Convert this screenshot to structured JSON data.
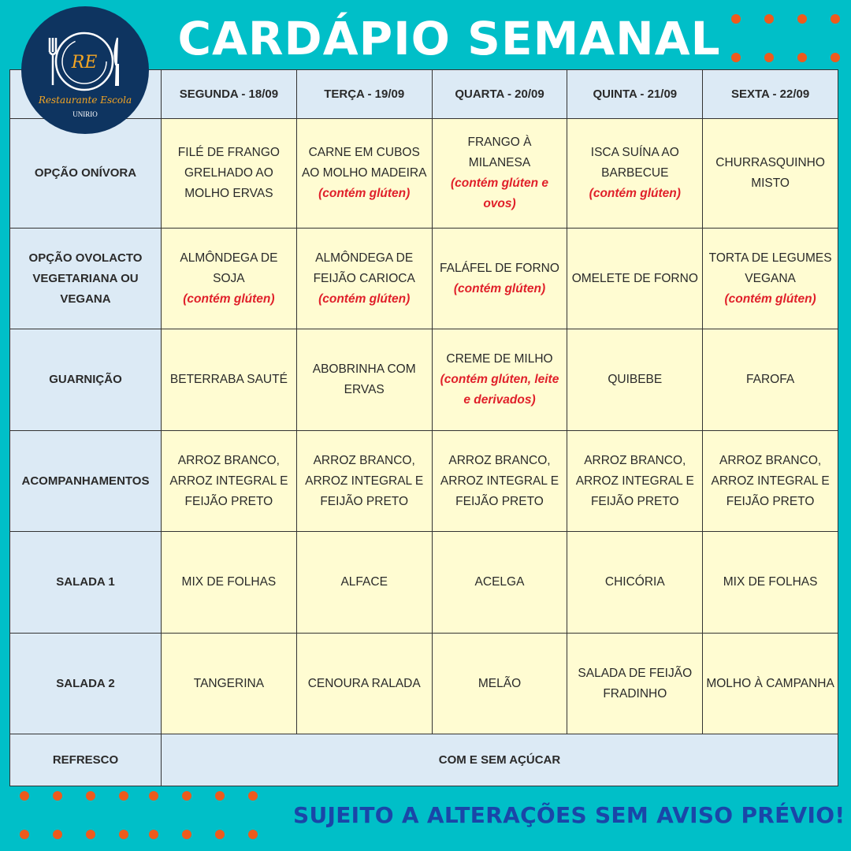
{
  "header": {
    "title": "CARDÁPIO SEMANAL"
  },
  "logo": {
    "initials": "RE",
    "name": "Restaurante Escola",
    "org": "UNIRIO"
  },
  "colors": {
    "background": "#00bfc8",
    "dots": "#ee5a1c",
    "header_cells": "#dceaf5",
    "food_cells": "#fffcd2",
    "allergen": "#e0202a",
    "footer": "#1a46a8"
  },
  "days": [
    "SEGUNDA - 18/09",
    "TERÇA - 19/09",
    "QUARTA - 20/09",
    "QUINTA - 21/09",
    "SEXTA - 22/09"
  ],
  "rows": [
    {
      "label": "OPÇÃO ONÍVORA",
      "cells": [
        {
          "text": "FILÉ DE FRANGO GRELHADO AO MOLHO ERVAS",
          "note": ""
        },
        {
          "text": "CARNE EM CUBOS AO MOLHO MADEIRA",
          "note": "(contém glúten)"
        },
        {
          "text": "FRANGO À MILANESA",
          "note": "(contém glúten e ovos)"
        },
        {
          "text": "ISCA SUÍNA AO BARBECUE",
          "note": "(contém glúten)"
        },
        {
          "text": "CHURRASQUINHO MISTO",
          "note": ""
        }
      ]
    },
    {
      "label": "OPÇÃO OVOLACTO VEGETARIANA OU VEGANA",
      "cells": [
        {
          "text": "ALMÔNDEGA DE SOJA",
          "note": "(contém glúten)"
        },
        {
          "text": "ALMÔNDEGA DE FEIJÃO CARIOCA",
          "note": "(contém glúten)"
        },
        {
          "text": "FALÁFEL DE FORNO",
          "note": "(contém glúten)"
        },
        {
          "text": "OMELETE DE FORNO",
          "note": ""
        },
        {
          "text": "TORTA DE LEGUMES VEGANA",
          "note": "(contém glúten)"
        }
      ]
    },
    {
      "label": "GUARNIÇÃO",
      "cells": [
        {
          "text": "BETERRABA SAUTÉ",
          "note": ""
        },
        {
          "text": "ABOBRINHA COM ERVAS",
          "note": ""
        },
        {
          "text": "CREME DE MILHO",
          "note": "(contém glúten, leite e derivados)"
        },
        {
          "text": "QUIBEBE",
          "note": ""
        },
        {
          "text": "FAROFA",
          "note": ""
        }
      ]
    },
    {
      "label": "ACOMPANHAMENTOS",
      "cells": [
        {
          "text": "ARROZ BRANCO, ARROZ INTEGRAL E FEIJÃO PRETO",
          "note": ""
        },
        {
          "text": "ARROZ BRANCO, ARROZ INTEGRAL E FEIJÃO PRETO",
          "note": ""
        },
        {
          "text": "ARROZ BRANCO, ARROZ INTEGRAL E FEIJÃO PRETO",
          "note": ""
        },
        {
          "text": "ARROZ BRANCO, ARROZ INTEGRAL E FEIJÃO PRETO",
          "note": ""
        },
        {
          "text": "ARROZ BRANCO, ARROZ INTEGRAL E FEIJÃO PRETO",
          "note": ""
        }
      ]
    },
    {
      "label": "SALADA 1",
      "cells": [
        {
          "text": "MIX DE FOLHAS",
          "note": ""
        },
        {
          "text": "ALFACE",
          "note": ""
        },
        {
          "text": "ACELGA",
          "note": ""
        },
        {
          "text": "CHICÓRIA",
          "note": ""
        },
        {
          "text": "MIX DE FOLHAS",
          "note": ""
        }
      ]
    },
    {
      "label": "SALADA 2",
      "cells": [
        {
          "text": "TANGERINA",
          "note": ""
        },
        {
          "text": "CENOURA RALADA",
          "note": ""
        },
        {
          "text": "MELÃO",
          "note": ""
        },
        {
          "text": "SALADA DE FEIJÃO FRADINHO",
          "note": ""
        },
        {
          "text": "MOLHO À CAMPANHA",
          "note": ""
        }
      ]
    }
  ],
  "refresco": {
    "label": "REFRESCO",
    "value": "COM E SEM AÇÚCAR"
  },
  "footer": {
    "text": "SUJEITO A ALTERAÇÕES SEM AVISO PRÉVIO!"
  }
}
